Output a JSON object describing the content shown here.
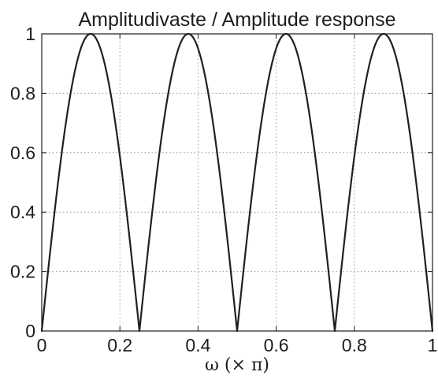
{
  "chart_data": {
    "type": "line",
    "title": "Amplitudivaste / Amplitude response",
    "xlabel": "ω (× π)",
    "ylabel": "",
    "xlim": [
      0,
      1
    ],
    "ylim": [
      0,
      1
    ],
    "xticks": [
      0,
      0.2,
      0.4,
      0.6,
      0.8,
      1
    ],
    "xtick_labels": [
      "0",
      "0.2",
      "0.4",
      "0.6",
      "0.8",
      "1"
    ],
    "yticks": [
      0,
      0.2,
      0.4,
      0.6,
      0.8,
      1
    ],
    "ytick_labels": [
      "0",
      "0.2",
      "0.4",
      "0.6",
      "0.8",
      "1"
    ],
    "grid": true,
    "series": [
      {
        "x": [
          0,
          0.025,
          0.05,
          0.075,
          0.1,
          0.125,
          0.15,
          0.175,
          0.2,
          0.225,
          0.25,
          0.275,
          0.3,
          0.325,
          0.35,
          0.375,
          0.4,
          0.425,
          0.45,
          0.475,
          0.5,
          0.525,
          0.55,
          0.575,
          0.6,
          0.625,
          0.65,
          0.675,
          0.7,
          0.725,
          0.75,
          0.775,
          0.8,
          0.825,
          0.85,
          0.875,
          0.9,
          0.925,
          0.95,
          0.975,
          1
        ],
        "y": [
          0,
          0.309,
          0.588,
          0.809,
          0.951,
          1,
          0.951,
          0.809,
          0.588,
          0.309,
          0,
          0.309,
          0.588,
          0.809,
          0.951,
          1,
          0.951,
          0.809,
          0.588,
          0.309,
          0,
          0.309,
          0.588,
          0.809,
          0.951,
          1,
          0.951,
          0.809,
          0.588,
          0.309,
          0,
          0.309,
          0.588,
          0.809,
          0.951,
          1,
          0.951,
          0.809,
          0.588,
          0.309,
          0
        ]
      }
    ]
  }
}
